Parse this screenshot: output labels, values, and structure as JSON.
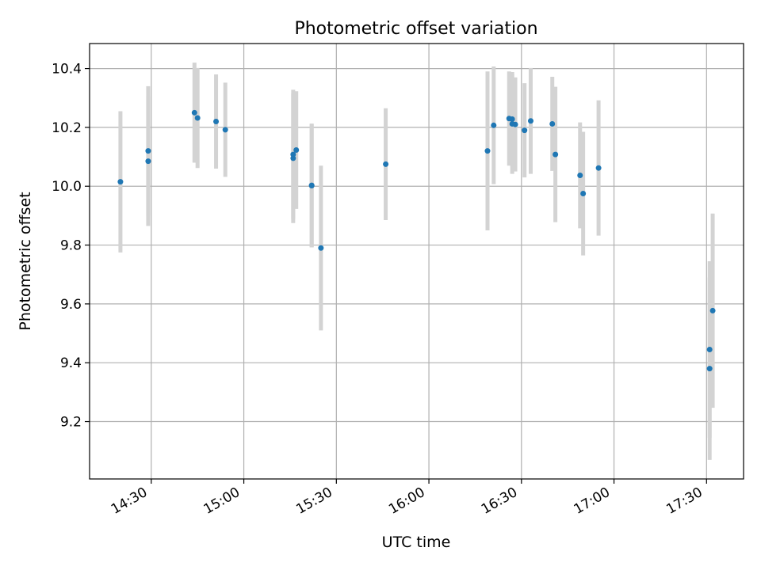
{
  "chart_data": {
    "type": "scatter",
    "title": "Photometric offset variation",
    "xlabel": "UTC time",
    "ylabel": "Photometric offset",
    "x_tick_labels": [
      "14:30",
      "15:00",
      "15:30",
      "16:00",
      "16:30",
      "17:00",
      "17:30"
    ],
    "x_ticks": [
      "14:30",
      "15:00",
      "15:30",
      "16:00",
      "16:30",
      "17:00",
      "17:30"
    ],
    "xlim": [
      "14:10",
      "17:42"
    ],
    "y_ticks": [
      9.2,
      9.4,
      9.6,
      9.8,
      10.0,
      10.2,
      10.4
    ],
    "y_tick_labels": [
      "9.2",
      "9.4",
      "9.6",
      "9.8",
      "10.0",
      "10.2",
      "10.4"
    ],
    "ylim": [
      9.005,
      10.485
    ],
    "grid": true,
    "colors": {
      "points": "#1f77b4",
      "errorbars": "#d3d3d3",
      "grid": "#b0b0b0"
    },
    "points": [
      {
        "x": "14:20",
        "y": 10.015,
        "err": 0.24
      },
      {
        "x": "14:29",
        "y": 10.12,
        "err": 0.22
      },
      {
        "x": "14:29",
        "y": 10.085,
        "err": 0.22
      },
      {
        "x": "14:44",
        "y": 10.25,
        "err": 0.17
      },
      {
        "x": "14:45",
        "y": 10.232,
        "err": 0.17
      },
      {
        "x": "14:51",
        "y": 10.22,
        "err": 0.16
      },
      {
        "x": "14:54",
        "y": 10.192,
        "err": 0.16
      },
      {
        "x": "15:16",
        "y": 10.095,
        "err": 0.22
      },
      {
        "x": "15:16",
        "y": 10.108,
        "err": 0.22
      },
      {
        "x": "15:17",
        "y": 10.123,
        "err": 0.2
      },
      {
        "x": "15:22",
        "y": 10.003,
        "err": 0.21
      },
      {
        "x": "15:22",
        "y": 10.002,
        "err": 0.21
      },
      {
        "x": "15:25",
        "y": 9.79,
        "err": 0.28
      },
      {
        "x": "15:46",
        "y": 10.075,
        "err": 0.19
      },
      {
        "x": "16:19",
        "y": 10.12,
        "err": 0.27
      },
      {
        "x": "16:21",
        "y": 10.207,
        "err": 0.2
      },
      {
        "x": "16:26",
        "y": 10.23,
        "err": 0.16
      },
      {
        "x": "16:27",
        "y": 10.228,
        "err": 0.16
      },
      {
        "x": "16:27",
        "y": 10.212,
        "err": 0.17
      },
      {
        "x": "16:28",
        "y": 10.21,
        "err": 0.16
      },
      {
        "x": "16:31",
        "y": 10.19,
        "err": 0.16
      },
      {
        "x": "16:33",
        "y": 10.222,
        "err": 0.18
      },
      {
        "x": "16:40",
        "y": 10.212,
        "err": 0.16
      },
      {
        "x": "16:41",
        "y": 10.108,
        "err": 0.23
      },
      {
        "x": "16:49",
        "y": 10.037,
        "err": 0.18
      },
      {
        "x": "16:50",
        "y": 9.975,
        "err": 0.21
      },
      {
        "x": "16:55",
        "y": 10.062,
        "err": 0.23
      },
      {
        "x": "17:31",
        "y": 9.445,
        "err": 0.3
      },
      {
        "x": "17:31",
        "y": 9.38,
        "err": 0.31
      },
      {
        "x": "17:32",
        "y": 9.577,
        "err": 0.33
      }
    ]
  }
}
